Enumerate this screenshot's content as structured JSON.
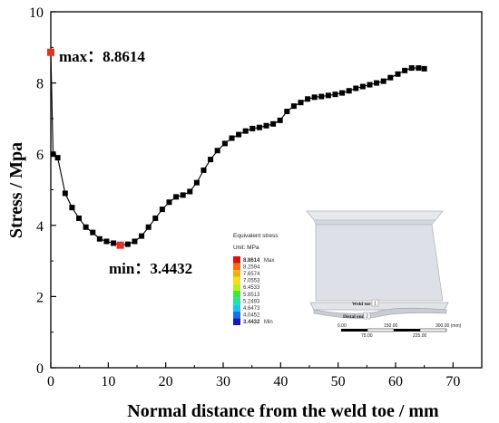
{
  "chart_data": {
    "type": "line",
    "xlabel": "Normal distance from the weld toe / mm",
    "ylabel": "Stress / Mpa",
    "xlim": [
      0,
      75
    ],
    "ylim": [
      0,
      10
    ],
    "xticks": [
      0,
      10,
      20,
      30,
      40,
      50,
      60,
      70
    ],
    "yticks": [
      0,
      2,
      4,
      6,
      8,
      10
    ],
    "grid": false,
    "series": [
      {
        "name": "",
        "color": "#000000",
        "marker": "square",
        "x": [
          0,
          0.4,
          1.2,
          2.5,
          3.7,
          4.9,
          6.1,
          7.3,
          8.5,
          9.7,
          10.9,
          12.1,
          13.4,
          14.6,
          15.8,
          17.0,
          18.2,
          19.4,
          20.6,
          21.8,
          23.0,
          24.2,
          25.4,
          26.6,
          27.8,
          29.0,
          30.3,
          31.5,
          32.7,
          33.9,
          35.1,
          36.3,
          37.5,
          38.7,
          39.9,
          41.1,
          42.3,
          43.5,
          44.7,
          45.9,
          47.1,
          48.3,
          49.5,
          50.7,
          51.9,
          53.1,
          54.3,
          55.5,
          56.7,
          57.9,
          59.1,
          60.4,
          61.6,
          62.8,
          64.0,
          65.0
        ],
        "y": [
          8.8614,
          6.0,
          5.9,
          4.9,
          4.5,
          4.2,
          3.95,
          3.8,
          3.62,
          3.55,
          3.5,
          3.4432,
          3.47,
          3.55,
          3.7,
          3.95,
          4.2,
          4.45,
          4.65,
          4.8,
          4.85,
          4.95,
          5.2,
          5.55,
          5.85,
          6.1,
          6.3,
          6.45,
          6.55,
          6.65,
          6.72,
          6.75,
          6.8,
          6.85,
          6.95,
          7.2,
          7.35,
          7.45,
          7.55,
          7.6,
          7.62,
          7.65,
          7.68,
          7.72,
          7.78,
          7.85,
          7.9,
          7.95,
          8.0,
          8.05,
          8.15,
          8.25,
          8.35,
          8.42,
          8.42,
          8.4
        ]
      }
    ],
    "highlights": [
      {
        "x": 0,
        "y": 8.8614,
        "color": "#e53222"
      },
      {
        "x": 12.1,
        "y": 3.4432,
        "color": "#e53222"
      }
    ],
    "annotations": [
      {
        "text": "max：8.8614"
      },
      {
        "text": "min：3.4432"
      }
    ]
  },
  "inset": {
    "legend": {
      "title": "Equivalent stress",
      "unit": "Unit: MPa",
      "levels": [
        {
          "value": "8.8614",
          "suffix": "Max",
          "color": "#e01010",
          "bold": true
        },
        {
          "value": "8.2594",
          "suffix": "",
          "color": "#f27014",
          "bold": false
        },
        {
          "value": "7.6574",
          "suffix": "",
          "color": "#f2ad12",
          "bold": false
        },
        {
          "value": "7.0553",
          "suffix": "",
          "color": "#f0e01c",
          "bold": false
        },
        {
          "value": "6.4533",
          "suffix": "",
          "color": "#b8ee20",
          "bold": false
        },
        {
          "value": "5.8513",
          "suffix": "",
          "color": "#3ee63a",
          "bold": false
        },
        {
          "value": "5.2493",
          "suffix": "",
          "color": "#22e0a8",
          "bold": false
        },
        {
          "value": "4.6473",
          "suffix": "",
          "color": "#16c8e8",
          "bold": false
        },
        {
          "value": "4.0452",
          "suffix": "",
          "color": "#1a6cf0",
          "bold": false
        },
        {
          "value": "3.4432",
          "suffix": "Min",
          "color": "#1818b8",
          "bold": true
        }
      ]
    },
    "model": {
      "label1": "Weld toe",
      "tag1": "1",
      "label2": "Distal end",
      "tag2": "2"
    },
    "scale": {
      "top": [
        "0.00",
        "150.00",
        "300.00 (mm)"
      ],
      "bottom": [
        "75.00",
        "225.00"
      ]
    }
  }
}
